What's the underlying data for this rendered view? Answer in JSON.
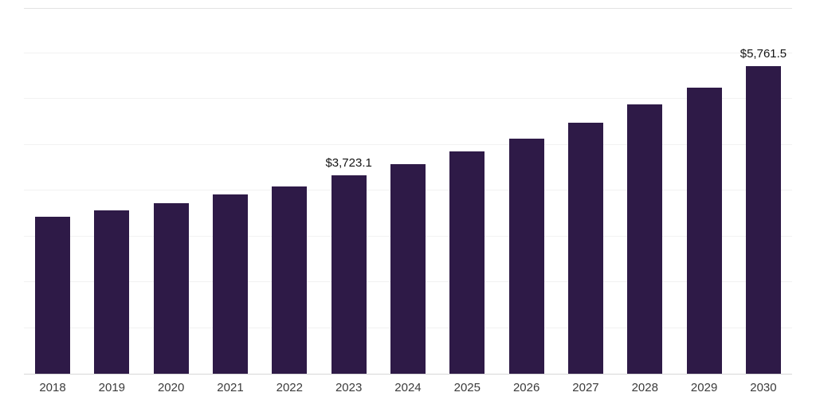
{
  "chart_data": {
    "type": "bar",
    "title": "",
    "xlabel": "",
    "ylabel": "",
    "categories": [
      "2018",
      "2019",
      "2020",
      "2021",
      "2022",
      "2023",
      "2024",
      "2025",
      "2026",
      "2027",
      "2028",
      "2029",
      "2030"
    ],
    "values": [
      2940,
      3060,
      3190,
      3360,
      3510,
      3723.1,
      3930,
      4170,
      4400,
      4700,
      5050,
      5360,
      5761.5
    ],
    "point_labels": [
      "",
      "",
      "",
      "",
      "",
      "$3,723.1",
      "",
      "",
      "",
      "",
      "",
      "",
      "$5,761.5"
    ],
    "ylim": [
      0,
      6870
    ],
    "grid": "horizontal",
    "gridline_count": 8,
    "legend": "none"
  },
  "colors": {
    "bar": "#2e1a47",
    "gridline": "#f2f2f2",
    "top_border": "#e3e3e3",
    "axis_line": "#d8d8d8",
    "value_label_text": "#141414",
    "tick_text": "#3b3b3b",
    "background": "#ffffff"
  }
}
